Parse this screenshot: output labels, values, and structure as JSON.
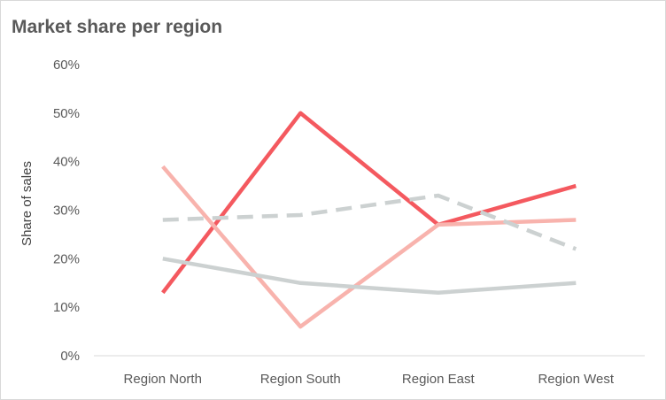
{
  "chart_data": {
    "type": "line",
    "title": "Market share per region",
    "ylabel": "Share of sales",
    "xlabel": "",
    "categories": [
      "Region North",
      "Region South",
      "Region East",
      "Region West"
    ],
    "ylim": [
      0,
      60
    ],
    "yticks": [
      0,
      10,
      20,
      30,
      40,
      50,
      60
    ],
    "ytick_labels": [
      "0%",
      "10%",
      "20%",
      "30%",
      "40%",
      "50%",
      "60%"
    ],
    "grid": false,
    "legend": "none",
    "series": [
      {
        "values": [
          13,
          50,
          27,
          35
        ],
        "color": "#f4595f",
        "dash": "solid"
      },
      {
        "values": [
          39,
          6,
          27,
          28
        ],
        "color": "#f8b3ad",
        "dash": "solid"
      },
      {
        "values": [
          20,
          15,
          13,
          15
        ],
        "color": "#ccd1d1",
        "dash": "solid"
      },
      {
        "values": [
          28,
          29,
          33,
          22
        ],
        "color": "#ccd1d1",
        "dash": "dashed"
      }
    ]
  }
}
